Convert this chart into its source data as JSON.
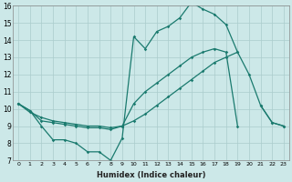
{
  "xlabel": "Humidex (Indice chaleur)",
  "x_values": [
    0,
    1,
    2,
    3,
    4,
    5,
    6,
    7,
    8,
    9,
    10,
    11,
    12,
    13,
    14,
    15,
    16,
    17,
    18,
    19,
    20,
    21,
    22,
    23
  ],
  "series_upper": [
    10.3,
    9.9,
    9.0,
    8.2,
    8.2,
    8.0,
    7.5,
    7.5,
    7.0,
    8.3,
    14.2,
    13.5,
    14.5,
    14.8,
    15.3,
    16.2,
    15.8,
    15.5,
    14.9,
    13.3,
    12.0,
    10.2,
    9.2,
    9.0
  ],
  "series_mid": [
    10.3,
    9.9,
    9.3,
    9.2,
    9.1,
    9.0,
    8.9,
    8.9,
    8.8,
    9.0,
    10.3,
    11.0,
    11.5,
    12.0,
    12.5,
    13.0,
    13.3,
    13.5,
    13.3,
    9.0,
    null,
    null,
    null,
    null
  ],
  "series_low": [
    null,
    null,
    null,
    null,
    null,
    null,
    null,
    null,
    null,
    null,
    null,
    null,
    null,
    null,
    null,
    null,
    null,
    null,
    null,
    null,
    null,
    null,
    null,
    null
  ],
  "series_diag": [
    10.3,
    9.8,
    9.5,
    9.3,
    9.2,
    9.1,
    9.0,
    9.0,
    8.9,
    9.0,
    9.3,
    9.7,
    10.2,
    10.7,
    11.2,
    11.7,
    12.2,
    12.7,
    13.0,
    13.3,
    null,
    null,
    null,
    null
  ],
  "series_flat": [
    null,
    null,
    null,
    null,
    null,
    null,
    null,
    null,
    null,
    null,
    null,
    null,
    null,
    null,
    null,
    null,
    null,
    null,
    null,
    null,
    null,
    10.2,
    9.2,
    9.0
  ],
  "line_color": "#1a7a6e",
  "bg_color": "#cce8e8",
  "grid_color": "#aacccc",
  "ylim": [
    7,
    16
  ],
  "xlim_min": -0.5,
  "xlim_max": 23.5,
  "yticks": [
    7,
    8,
    9,
    10,
    11,
    12,
    13,
    14,
    15,
    16
  ],
  "xticks": [
    0,
    1,
    2,
    3,
    4,
    5,
    6,
    7,
    8,
    9,
    10,
    11,
    12,
    13,
    14,
    15,
    16,
    17,
    18,
    19,
    20,
    21,
    22,
    23
  ]
}
